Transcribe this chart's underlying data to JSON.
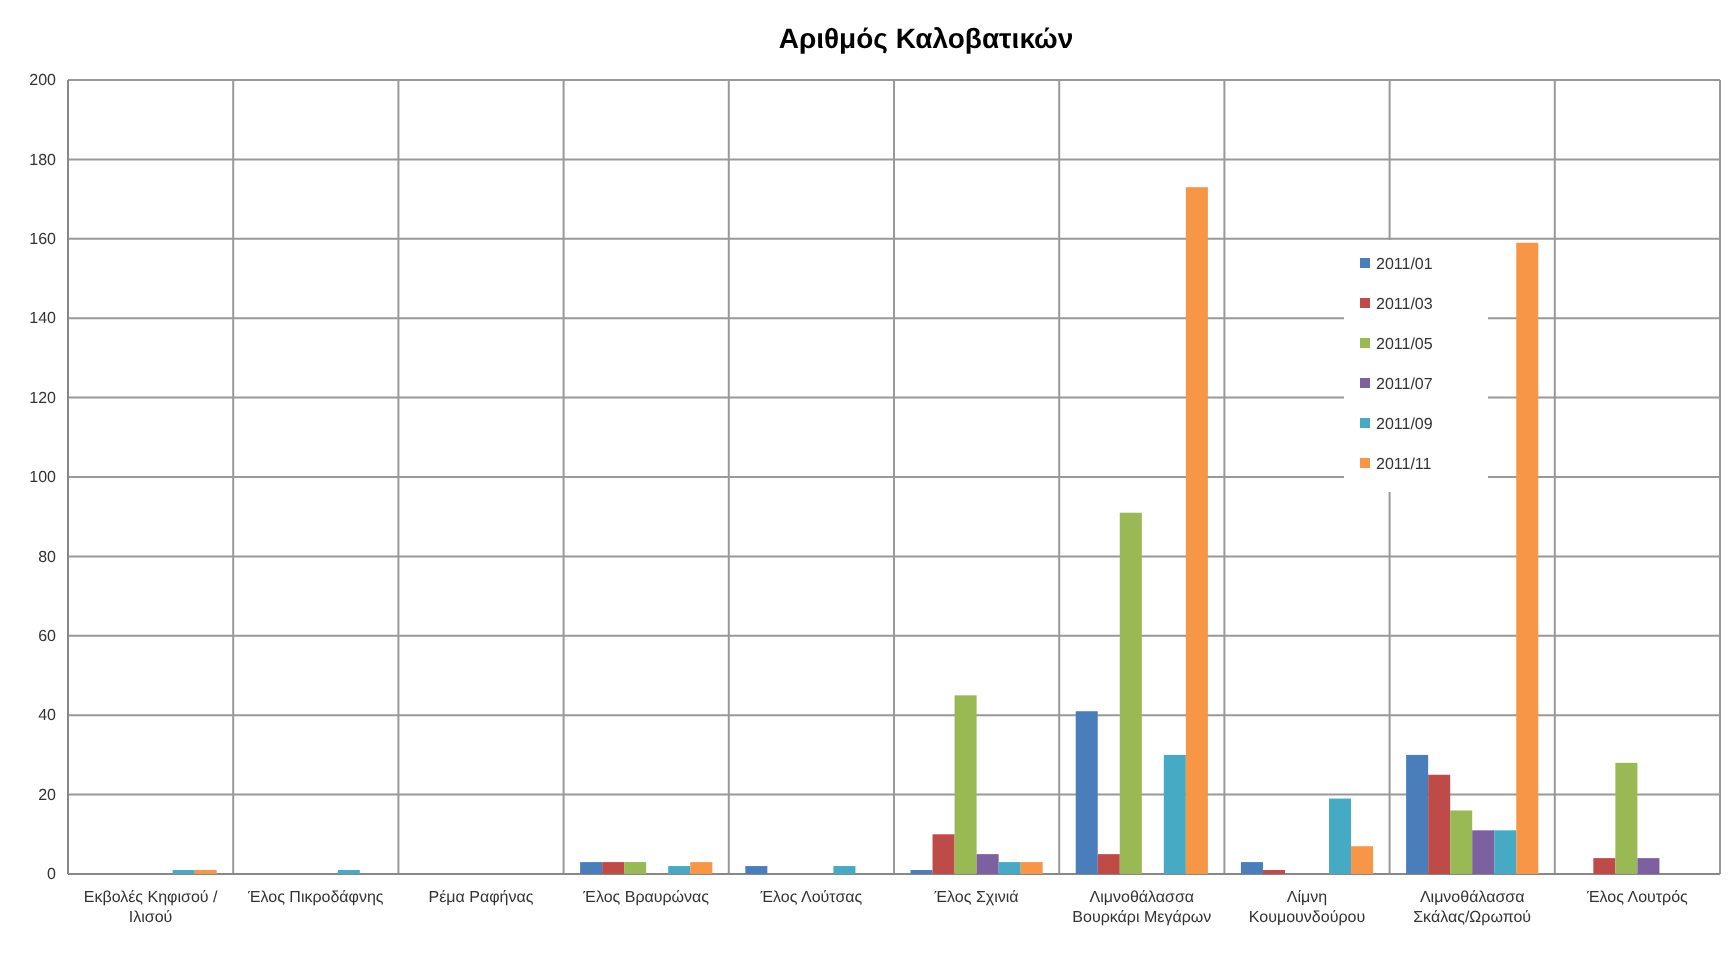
{
  "chart_data": {
    "type": "bar",
    "title": "Αριθμός Καλοβατικών",
    "categories": [
      "Εκβολές Κηφισού / Ιλισού",
      "Έλος Πικροδάφνης",
      "Ρέμα Ραφήνας",
      "Έλος Βραυρώνας",
      "Έλος Λούτσας",
      "Έλος Σχινιά",
      "Λιμνοθάλασσα Βουρκάρι Μεγάρων",
      "Λίμνη Κουμουνδούρου",
      "Λιμνοθάλασσα Σκάλας/Ωρωπού",
      "Έλος Λουτρός"
    ],
    "series": [
      {
        "name": "2011/01",
        "color": "#4a7ebb",
        "values": [
          null,
          null,
          null,
          3,
          2,
          1,
          41,
          3,
          30,
          null
        ]
      },
      {
        "name": "2011/03",
        "color": "#be4b48",
        "values": [
          null,
          null,
          null,
          3,
          null,
          10,
          5,
          1,
          25,
          4
        ]
      },
      {
        "name": "2011/05",
        "color": "#98b954",
        "values": [
          null,
          null,
          null,
          3,
          null,
          45,
          91,
          null,
          16,
          28
        ]
      },
      {
        "name": "2011/07",
        "color": "#7d60a0",
        "values": [
          null,
          null,
          null,
          null,
          null,
          5,
          null,
          null,
          11,
          4
        ]
      },
      {
        "name": "2011/09",
        "color": "#46aac5",
        "values": [
          1,
          1,
          null,
          2,
          2,
          3,
          30,
          19,
          11,
          null
        ]
      },
      {
        "name": "2011/11",
        "color": "#f79646",
        "values": [
          1,
          null,
          null,
          3,
          null,
          3,
          173,
          7,
          159,
          null
        ]
      }
    ],
    "ylim": [
      0,
      200
    ],
    "yticks": [
      0,
      20,
      40,
      60,
      80,
      100,
      120,
      140,
      160,
      180,
      200
    ],
    "grid": true,
    "legend": "right"
  }
}
